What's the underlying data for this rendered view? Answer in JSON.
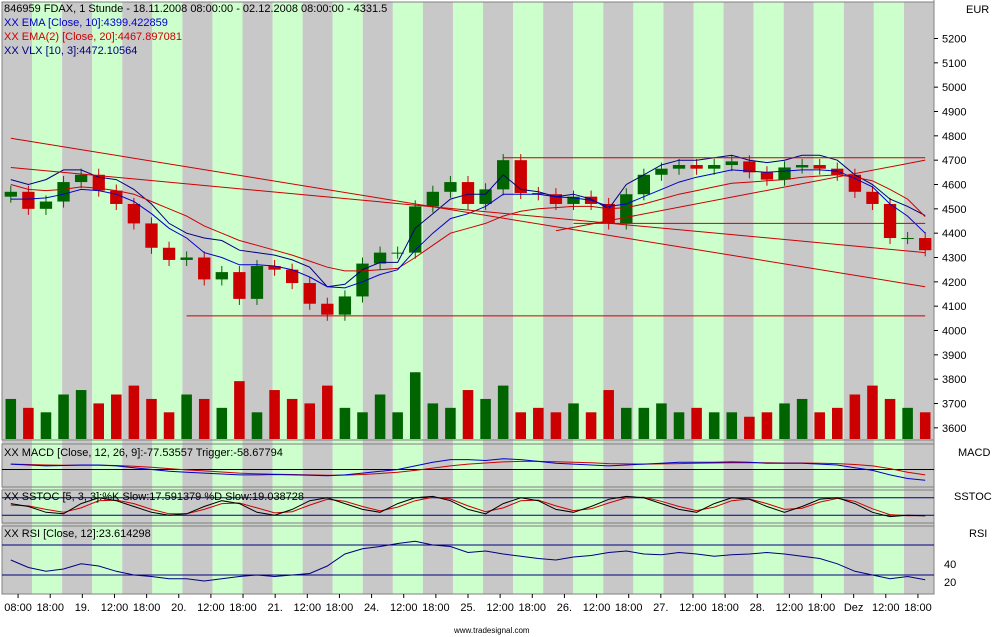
{
  "header": {
    "title_line": "846959 FDAX, 1 Stunde - 18.11.2008 08:00:00 - 02.12.2008 08:00:00 - 4331.5",
    "currency": "EUR"
  },
  "legend": [
    {
      "text": "XX EMA [Close, 10]:4399.422859",
      "color": "#0000cc"
    },
    {
      "text": "XX EMA(2) [Close, 20]:4467.897081",
      "color": "#cc0000"
    },
    {
      "text": "XX VLX [10, 3]:4472.10564",
      "color": "#000080"
    }
  ],
  "panels": {
    "macd": {
      "label": "XX MACD [Close, 12, 26, 9]:-77.53557  Trigger:-58.67794",
      "axis_name": "MACD"
    },
    "sstoc": {
      "label": "XX SSTOC [5, 3, 3]:%K Slow:17.591379  %D Slow:19.038728",
      "axis_name": "SSTOC"
    },
    "rsi": {
      "label": "XX RSI [Close, 12]:23.614298",
      "axis_name": "RSI",
      "ticks": [
        "40",
        "20"
      ]
    }
  },
  "watermark": "www.tradesignal.com",
  "colors": {
    "up": "#006400",
    "down": "#cc0000",
    "ema10": "#0000cc",
    "ema20": "#cc0000",
    "vlx": "#000080",
    "band_green": "#ccffcc",
    "band_gray": "#c8c8c8",
    "trendline": "#cc0000"
  },
  "chart_data": {
    "type": "candlestick",
    "instrument": "846959 FDAX",
    "interval": "1 Stunde",
    "currency": "EUR",
    "ylim": [
      3550,
      5350
    ],
    "yticks": [
      3600,
      3700,
      3800,
      3900,
      4000,
      4100,
      4200,
      4300,
      4400,
      4500,
      4600,
      4700,
      4800,
      4900,
      5000,
      5100,
      5200
    ],
    "x_tick_labels": [
      "08:00",
      "18:00",
      "19.",
      "12:00",
      "18:00",
      "20.",
      "12:00",
      "18:00",
      "21.",
      "12:00",
      "18:00",
      "24.",
      "12:00",
      "18:00",
      "25.",
      "12:00",
      "18:00",
      "26.",
      "12:00",
      "18:00",
      "27.",
      "12:00",
      "18:00",
      "28.",
      "12:00",
      "18:00",
      "Dez",
      "12:00",
      "18:00"
    ],
    "close_path": [
      4570,
      4500,
      4530,
      4610,
      4640,
      4575,
      4520,
      4440,
      4340,
      4290,
      4300,
      4210,
      4240,
      4130,
      4265,
      4250,
      4195,
      4110,
      4065,
      4140,
      4275,
      4320,
      4320,
      4510,
      4570,
      4610,
      4520,
      4580,
      4700,
      4565,
      4560,
      4520,
      4550,
      4520,
      4440,
      4560,
      4640,
      4665,
      4680,
      4665,
      4680,
      4695,
      4650,
      4620,
      4670,
      4680,
      4665,
      4640,
      4570,
      4520,
      4380,
      4380,
      4330
    ],
    "ema10": [
      4540,
      4540,
      4545,
      4560,
      4580,
      4575,
      4560,
      4530,
      4480,
      4420,
      4380,
      4320,
      4300,
      4270,
      4270,
      4265,
      4250,
      4220,
      4180,
      4175,
      4200,
      4230,
      4250,
      4330,
      4400,
      4460,
      4480,
      4510,
      4560,
      4560,
      4560,
      4550,
      4545,
      4535,
      4510,
      4520,
      4550,
      4580,
      4610,
      4630,
      4645,
      4660,
      4655,
      4650,
      4655,
      4660,
      4660,
      4655,
      4625,
      4590,
      4520,
      4470,
      4400
    ],
    "ema20": [
      4600,
      4580,
      4575,
      4580,
      4590,
      4585,
      4575,
      4560,
      4530,
      4500,
      4470,
      4430,
      4400,
      4370,
      4350,
      4330,
      4310,
      4285,
      4260,
      4245,
      4245,
      4250,
      4255,
      4300,
      4350,
      4400,
      4420,
      4440,
      4470,
      4490,
      4500,
      4505,
      4510,
      4510,
      4500,
      4505,
      4520,
      4540,
      4560,
      4575,
      4590,
      4605,
      4610,
      4615,
      4620,
      4630,
      4635,
      4640,
      4630,
      4615,
      4580,
      4540,
      4468
    ],
    "vlx": [
      4620,
      4600,
      4620,
      4660,
      4660,
      4630,
      4620,
      4580,
      4520,
      4440,
      4400,
      4380,
      4370,
      4330,
      4320,
      4310,
      4290,
      4260,
      4180,
      4190,
      4250,
      4280,
      4280,
      4420,
      4480,
      4540,
      4560,
      4560,
      4640,
      4580,
      4570,
      4550,
      4560,
      4540,
      4500,
      4600,
      4640,
      4680,
      4700,
      4700,
      4710,
      4720,
      4700,
      4690,
      4700,
      4720,
      4720,
      4700,
      4640,
      4600,
      4540,
      4510,
      4472
    ],
    "volume": [
      0.45,
      0.35,
      0.3,
      0.5,
      0.55,
      0.4,
      0.5,
      0.6,
      0.45,
      0.3,
      0.5,
      0.45,
      0.35,
      0.65,
      0.3,
      0.55,
      0.45,
      0.4,
      0.6,
      0.35,
      0.3,
      0.5,
      0.3,
      0.75,
      0.4,
      0.35,
      0.55,
      0.45,
      0.6,
      0.3,
      0.35,
      0.3,
      0.4,
      0.3,
      0.55,
      0.35,
      0.35,
      0.4,
      0.3,
      0.35,
      0.3,
      0.3,
      0.25,
      0.3,
      0.4,
      0.45,
      0.3,
      0.35,
      0.5,
      0.6,
      0.45,
      0.35,
      0.3
    ],
    "trendlines_price": [
      {
        "from": [
          0,
          4790
        ],
        "to": [
          52,
          4180
        ]
      },
      {
        "from": [
          0,
          4670
        ],
        "to": [
          52,
          4320
        ]
      },
      {
        "from": [
          31,
          4410
        ],
        "to": [
          52,
          4700
        ]
      }
    ],
    "hlines_price": [
      {
        "value": 4060,
        "from": 10,
        "to": 52
      },
      {
        "value": 4710,
        "from": 28,
        "to": 52
      },
      {
        "value": 4440,
        "from": 32,
        "to": 52
      }
    ],
    "macd": {
      "macd": [
        0.3,
        0.25,
        0.2,
        0.22,
        0.25,
        0.25,
        0.2,
        0.1,
        0.0,
        -0.1,
        -0.15,
        -0.2,
        -0.25,
        -0.3,
        -0.3,
        -0.28,
        -0.3,
        -0.32,
        -0.35,
        -0.3,
        -0.2,
        -0.1,
        0.0,
        0.2,
        0.4,
        0.55,
        0.55,
        0.5,
        0.6,
        0.55,
        0.45,
        0.35,
        0.3,
        0.25,
        0.2,
        0.25,
        0.3,
        0.35,
        0.4,
        0.4,
        0.4,
        0.42,
        0.4,
        0.35,
        0.35,
        0.35,
        0.3,
        0.25,
        0.1,
        -0.05,
        -0.3,
        -0.5,
        -0.6
      ],
      "trigger": [
        0.3,
        0.28,
        0.25,
        0.24,
        0.24,
        0.24,
        0.22,
        0.18,
        0.12,
        0.05,
        -0.02,
        -0.08,
        -0.14,
        -0.2,
        -0.24,
        -0.26,
        -0.28,
        -0.3,
        -0.32,
        -0.31,
        -0.28,
        -0.22,
        -0.15,
        -0.05,
        0.08,
        0.2,
        0.3,
        0.36,
        0.42,
        0.45,
        0.45,
        0.43,
        0.4,
        0.37,
        0.33,
        0.31,
        0.3,
        0.31,
        0.33,
        0.35,
        0.36,
        0.38,
        0.38,
        0.37,
        0.36,
        0.36,
        0.35,
        0.33,
        0.28,
        0.2,
        0.05,
        -0.15,
        -0.3
      ]
    },
    "sstoc": {
      "k_slow": [
        60,
        50,
        30,
        25,
        60,
        80,
        70,
        50,
        30,
        20,
        25,
        50,
        70,
        60,
        30,
        20,
        40,
        70,
        80,
        60,
        40,
        30,
        60,
        80,
        85,
        70,
        40,
        25,
        60,
        80,
        70,
        40,
        30,
        50,
        75,
        85,
        80,
        60,
        40,
        30,
        60,
        80,
        75,
        50,
        30,
        50,
        75,
        80,
        60,
        30,
        15,
        20,
        17.6
      ],
      "d_slow": [
        55,
        52,
        40,
        30,
        45,
        70,
        72,
        60,
        40,
        25,
        25,
        40,
        60,
        62,
        45,
        28,
        32,
        55,
        75,
        68,
        50,
        35,
        48,
        70,
        82,
        76,
        52,
        32,
        45,
        70,
        72,
        52,
        36,
        42,
        62,
        80,
        82,
        68,
        50,
        36,
        48,
        70,
        76,
        60,
        40,
        44,
        65,
        78,
        68,
        42,
        22,
        18,
        19.0
      ]
    },
    "rsi": [
      50,
      40,
      35,
      38,
      45,
      42,
      35,
      30,
      28,
      25,
      25,
      22,
      25,
      28,
      30,
      28,
      30,
      32,
      42,
      58,
      65,
      68,
      72,
      75,
      70,
      68,
      60,
      62,
      58,
      55,
      52,
      50,
      54,
      56,
      60,
      62,
      58,
      57,
      60,
      58,
      55,
      57,
      58,
      60,
      58,
      55,
      52,
      45,
      35,
      30,
      25,
      28,
      23.6
    ]
  }
}
